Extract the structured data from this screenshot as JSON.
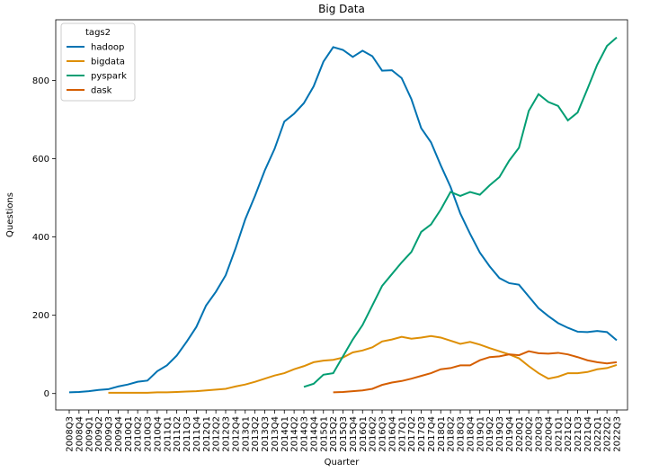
{
  "chart_data": {
    "type": "line",
    "title": "Big Data",
    "x_label": "Quarter",
    "y_label": "Questions",
    "legend_title": "tags2",
    "legend": "upper left",
    "grid": false,
    "categories": [
      "2008Q3",
      "2008Q4",
      "2009Q1",
      "2009Q2",
      "2009Q3",
      "2009Q4",
      "2010Q1",
      "2010Q2",
      "2010Q3",
      "2010Q4",
      "2011Q1",
      "2011Q2",
      "2011Q3",
      "2011Q4",
      "2012Q1",
      "2012Q2",
      "2012Q3",
      "2012Q4",
      "2013Q1",
      "2013Q2",
      "2013Q3",
      "2013Q4",
      "2014Q1",
      "2014Q2",
      "2014Q3",
      "2014Q4",
      "2015Q1",
      "2015Q2",
      "2015Q3",
      "2015Q4",
      "2016Q1",
      "2016Q2",
      "2016Q3",
      "2016Q4",
      "2017Q1",
      "2017Q2",
      "2017Q3",
      "2017Q4",
      "2018Q1",
      "2018Q2",
      "2018Q3",
      "2018Q4",
      "2019Q1",
      "2019Q2",
      "2019Q3",
      "2019Q4",
      "2020Q1",
      "2020Q2",
      "2020Q3",
      "2020Q4",
      "2021Q1",
      "2021Q2",
      "2021Q3",
      "2021Q4",
      "2022Q1",
      "2022Q2",
      "2022Q3"
    ],
    "ylim": [
      -42,
      955
    ],
    "yticks": [
      0,
      200,
      400,
      600,
      800
    ],
    "series": [
      {
        "name": "hadoop",
        "color": "#0173b2",
        "values": [
          3,
          4,
          6,
          9,
          11,
          18,
          23,
          30,
          33,
          57,
          72,
          97,
          132,
          170,
          225,
          260,
          302,
          370,
          445,
          505,
          570,
          625,
          695,
          715,
          742,
          785,
          848,
          885,
          878,
          860,
          876,
          862,
          825,
          826,
          806,
          752,
          678,
          642,
          583,
          528,
          460,
          408,
          360,
          325,
          295,
          282,
          278,
          248,
          218,
          198,
          180,
          168,
          158,
          157,
          160,
          157,
          136
        ]
      },
      {
        "name": "bigdata",
        "color": "#de8f05",
        "values": [
          null,
          null,
          null,
          null,
          2,
          2,
          2,
          2,
          2,
          3,
          3,
          4,
          5,
          6,
          8,
          10,
          12,
          18,
          23,
          30,
          38,
          46,
          52,
          62,
          70,
          80,
          84,
          86,
          92,
          105,
          110,
          118,
          133,
          138,
          145,
          140,
          143,
          147,
          143,
          135,
          127,
          132,
          125,
          116,
          108,
          100,
          90,
          70,
          52,
          38,
          43,
          52,
          52,
          55,
          62,
          65,
          73
        ]
      },
      {
        "name": "pyspark",
        "color": "#029e73",
        "values": [
          null,
          null,
          null,
          null,
          null,
          null,
          null,
          null,
          null,
          null,
          null,
          null,
          null,
          null,
          null,
          null,
          null,
          null,
          null,
          null,
          null,
          null,
          null,
          null,
          17,
          25,
          48,
          52,
          95,
          138,
          175,
          225,
          275,
          305,
          335,
          362,
          413,
          432,
          470,
          515,
          505,
          515,
          508,
          532,
          553,
          595,
          628,
          722,
          765,
          745,
          735,
          698,
          718,
          778,
          840,
          888,
          910
        ]
      },
      {
        "name": "dask",
        "color": "#d55e00",
        "values": [
          null,
          null,
          null,
          null,
          null,
          null,
          null,
          null,
          null,
          null,
          null,
          null,
          null,
          null,
          null,
          null,
          null,
          null,
          null,
          null,
          null,
          null,
          null,
          null,
          null,
          null,
          null,
          3,
          4,
          6,
          8,
          12,
          22,
          28,
          32,
          38,
          45,
          52,
          62,
          65,
          72,
          72,
          85,
          93,
          95,
          100,
          98,
          108,
          103,
          102,
          104,
          100,
          93,
          85,
          80,
          77,
          80
        ]
      }
    ]
  }
}
